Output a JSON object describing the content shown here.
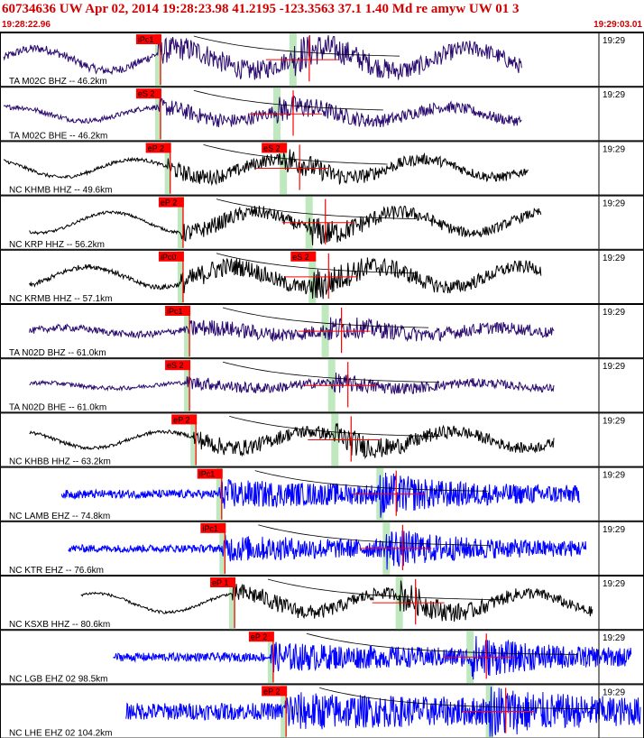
{
  "header": {
    "title": "60734636 UW Apr 02, 2014 19:28:23.98   41.2195 -123.3563 37.1 1.40 Md re amyw UW 01   3",
    "start_time": "19:28:22.96",
    "end_time": "19:29:03.01"
  },
  "colors": {
    "header_text": "#d00000",
    "pick_box": "#ff0000",
    "coda_window": "#b8e6b8",
    "trace_purple": "#2a0a6e",
    "trace_black": "#000000",
    "trace_blue": "#0000ff"
  },
  "tick_label": "19:29",
  "traces": [
    {
      "label": "TA M02C BHZ -- 46.2km",
      "pick": "iPc1",
      "pick2": "",
      "color": "purple",
      "p": 0.245,
      "s": 0.455,
      "ampl": 0.55,
      "freq": 14,
      "noise": 0.25,
      "start": 0.0,
      "end": 0.81,
      "lp": 0.8
    },
    {
      "label": "TA M02C BHE -- 46.2km",
      "pick": "eS 2",
      "pick2": "",
      "color": "purple",
      "p": 0.245,
      "s": 0.43,
      "ampl": 0.4,
      "freq": 14,
      "noise": 0.15,
      "start": 0.0,
      "end": 0.81,
      "lp": 0.5
    },
    {
      "label": "NC KHMB HHZ -- 49.6km",
      "pick": "eP 2",
      "pick2": "eS 2",
      "color": "black",
      "p": 0.26,
      "s": 0.44,
      "ampl": 0.45,
      "freq": 14,
      "noise": 0.1,
      "start": 0.0,
      "end": 0.82,
      "lp": 0.65
    },
    {
      "label": "NC KRP HHZ -- 56.2km",
      "pick": "eP 2",
      "pick2": "",
      "color": "black",
      "p": 0.28,
      "s": 0.48,
      "ampl": 0.5,
      "freq": 12,
      "noise": 0.08,
      "start": 0.04,
      "end": 0.84,
      "lp": 0.75
    },
    {
      "label": "NC KRMB HHZ -- 57.1km",
      "pick": "iPc0",
      "pick2": "eS 2",
      "color": "black",
      "p": 0.28,
      "s": 0.485,
      "ampl": 0.55,
      "freq": 12,
      "noise": 0.15,
      "start": 0.04,
      "end": 0.84,
      "lp": 0.75
    },
    {
      "label": "TA N02D BHZ -- 61.0km",
      "pick": "iPc1",
      "pick2": "",
      "color": "purple",
      "p": 0.29,
      "s": 0.505,
      "ampl": 0.35,
      "freq": 16,
      "noise": 0.2,
      "start": 0.04,
      "end": 0.86,
      "lp": 0.25
    },
    {
      "label": "TA N02D BHE -- 61.0km",
      "pick": "eS 2",
      "pick2": "",
      "color": "purple",
      "p": 0.29,
      "s": 0.515,
      "ampl": 0.3,
      "freq": 14,
      "noise": 0.12,
      "start": 0.04,
      "end": 0.86,
      "lp": 0.2
    },
    {
      "label": "NC KHBB HHZ -- 63.2km",
      "pick": "eP 2",
      "pick2": "",
      "color": "black",
      "p": 0.3,
      "s": 0.52,
      "ampl": 0.5,
      "freq": 12,
      "noise": 0.1,
      "start": 0.04,
      "end": 0.86,
      "lp": 0.6
    },
    {
      "label": "NC LAMB EHZ -- 74.8km",
      "pick": "iPc1",
      "pick2": "",
      "color": "blue",
      "p": 0.34,
      "s": 0.59,
      "ampl": 0.7,
      "freq": 90,
      "noise": 0.25,
      "start": 0.09,
      "end": 0.9,
      "lp": 0.0
    },
    {
      "label": "NC KTR EHZ -- 76.6km",
      "pick": "iPc1",
      "pick2": "",
      "color": "blue",
      "p": 0.345,
      "s": 0.6,
      "ampl": 0.65,
      "freq": 90,
      "noise": 0.22,
      "start": 0.1,
      "end": 0.91,
      "lp": 0.0
    },
    {
      "label": "NC KSXB HHZ -- 80.6km",
      "pick": "eP 1",
      "pick2": "",
      "color": "black",
      "p": 0.36,
      "s": 0.62,
      "ampl": 0.55,
      "freq": 12,
      "noise": 0.08,
      "start": 0.12,
      "end": 0.92,
      "lp": 0.7
    },
    {
      "label": "NC LGB EHZ 02 98.5km",
      "pick": "eP 2",
      "pick2": "",
      "color": "blue",
      "p": 0.42,
      "s": 0.73,
      "ampl": 0.7,
      "freq": 90,
      "noise": 0.25,
      "start": 0.17,
      "end": 0.98,
      "lp": 0.0
    },
    {
      "label": "NC LHE EHZ 02 104.2km",
      "pick": "eP 2",
      "pick2": "",
      "color": "blue",
      "p": 0.44,
      "s": 0.76,
      "ampl": 0.75,
      "freq": 90,
      "noise": 0.5,
      "start": 0.19,
      "end": 1.0,
      "lp": 0.0
    }
  ]
}
